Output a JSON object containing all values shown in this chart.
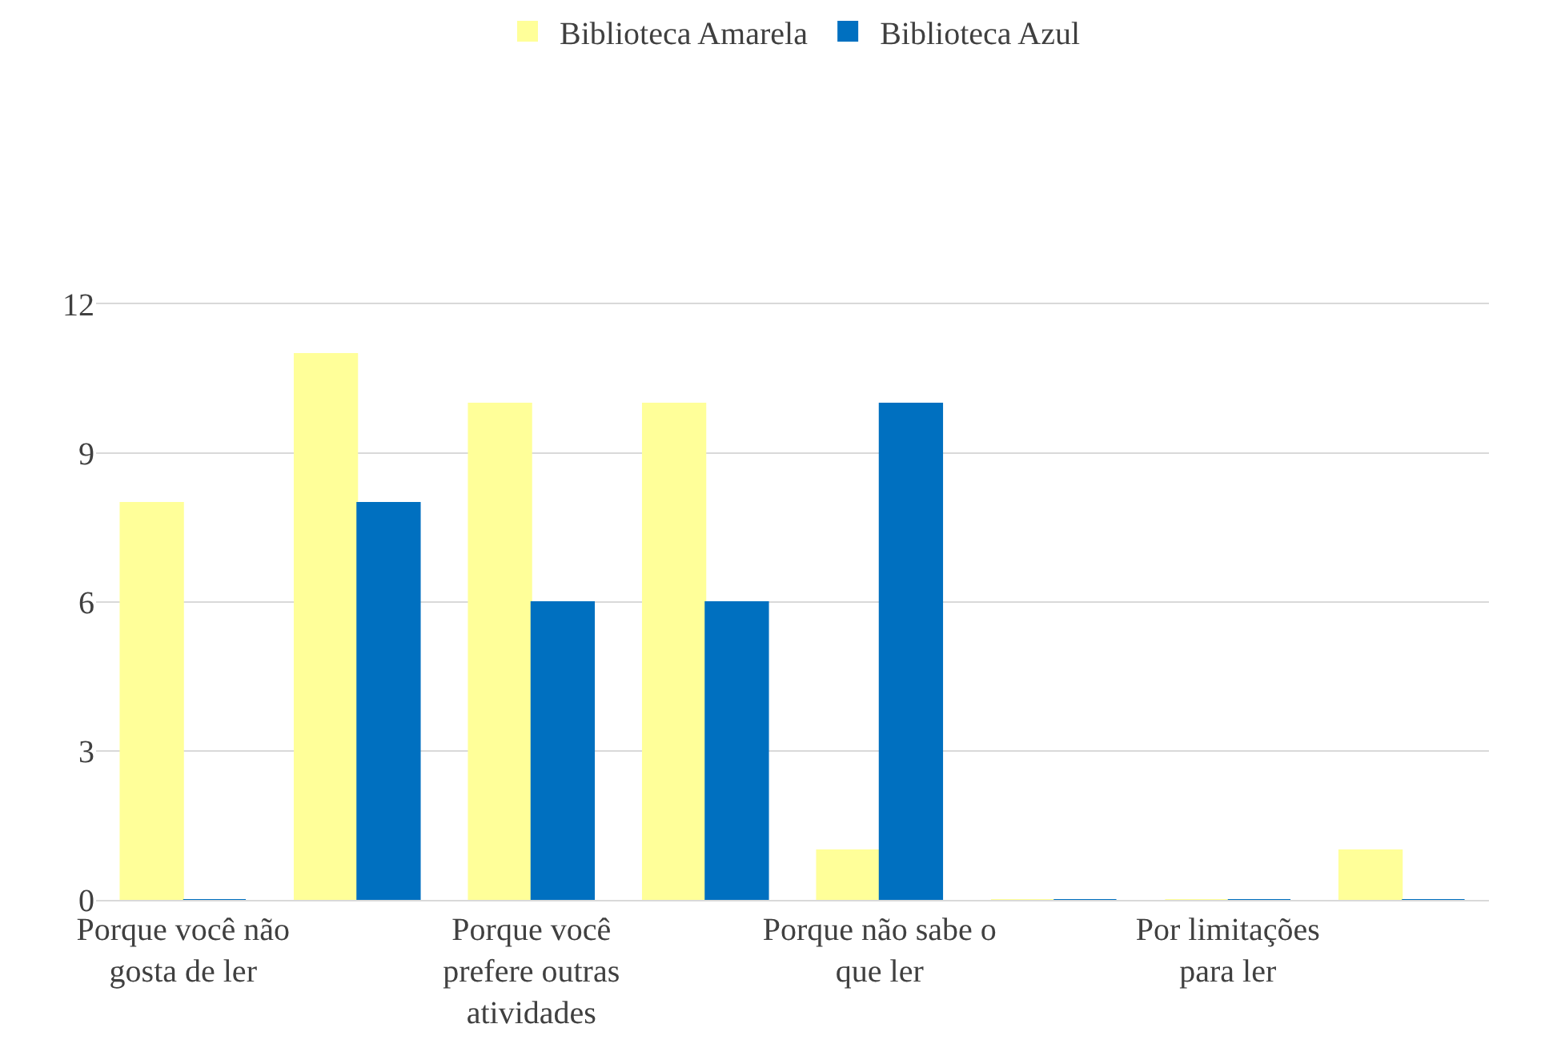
{
  "chart_data": {
    "type": "bar",
    "categories": [
      "Porque você não gosta de ler",
      null,
      "Porque você prefere outras atividades",
      null,
      "Porque não sabe o que ler",
      null,
      "Por limitações para ler",
      null
    ],
    "series": [
      {
        "name": "Biblioteca Amarela",
        "color": "#ffff99",
        "values": [
          8,
          11,
          10,
          10,
          1,
          0,
          0,
          1
        ]
      },
      {
        "name": "Biblioteca Azul",
        "color": "#0070c0",
        "values": [
          0,
          8,
          6,
          6,
          10,
          0,
          0,
          0
        ]
      }
    ],
    "ylim": [
      0,
      12
    ],
    "yticks": [
      0,
      3,
      6,
      9,
      12
    ],
    "grid": "y",
    "legend": "top"
  }
}
